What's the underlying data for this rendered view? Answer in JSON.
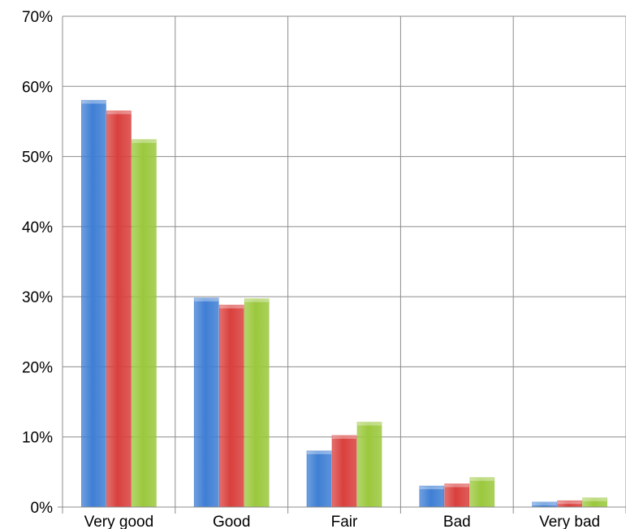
{
  "chart_data": {
    "type": "bar",
    "categories": [
      "Very good",
      "Good",
      "Fair",
      "Bad",
      "Very bad"
    ],
    "series": [
      {
        "color": "#3f7fd4",
        "values": [
          58.0,
          29.8,
          8.0,
          3.0,
          0.7
        ]
      },
      {
        "color": "#d9403d",
        "values": [
          56.5,
          28.8,
          10.2,
          3.3,
          0.9
        ]
      },
      {
        "color": "#9bc83d",
        "values": [
          52.4,
          29.7,
          12.1,
          4.2,
          1.3
        ]
      }
    ],
    "ylim": [
      0,
      70
    ],
    "yticks": [
      "0%",
      "10%",
      "20%",
      "30%",
      "40%",
      "50%",
      "60%",
      "70%"
    ],
    "grid": true,
    "legend": "none"
  }
}
